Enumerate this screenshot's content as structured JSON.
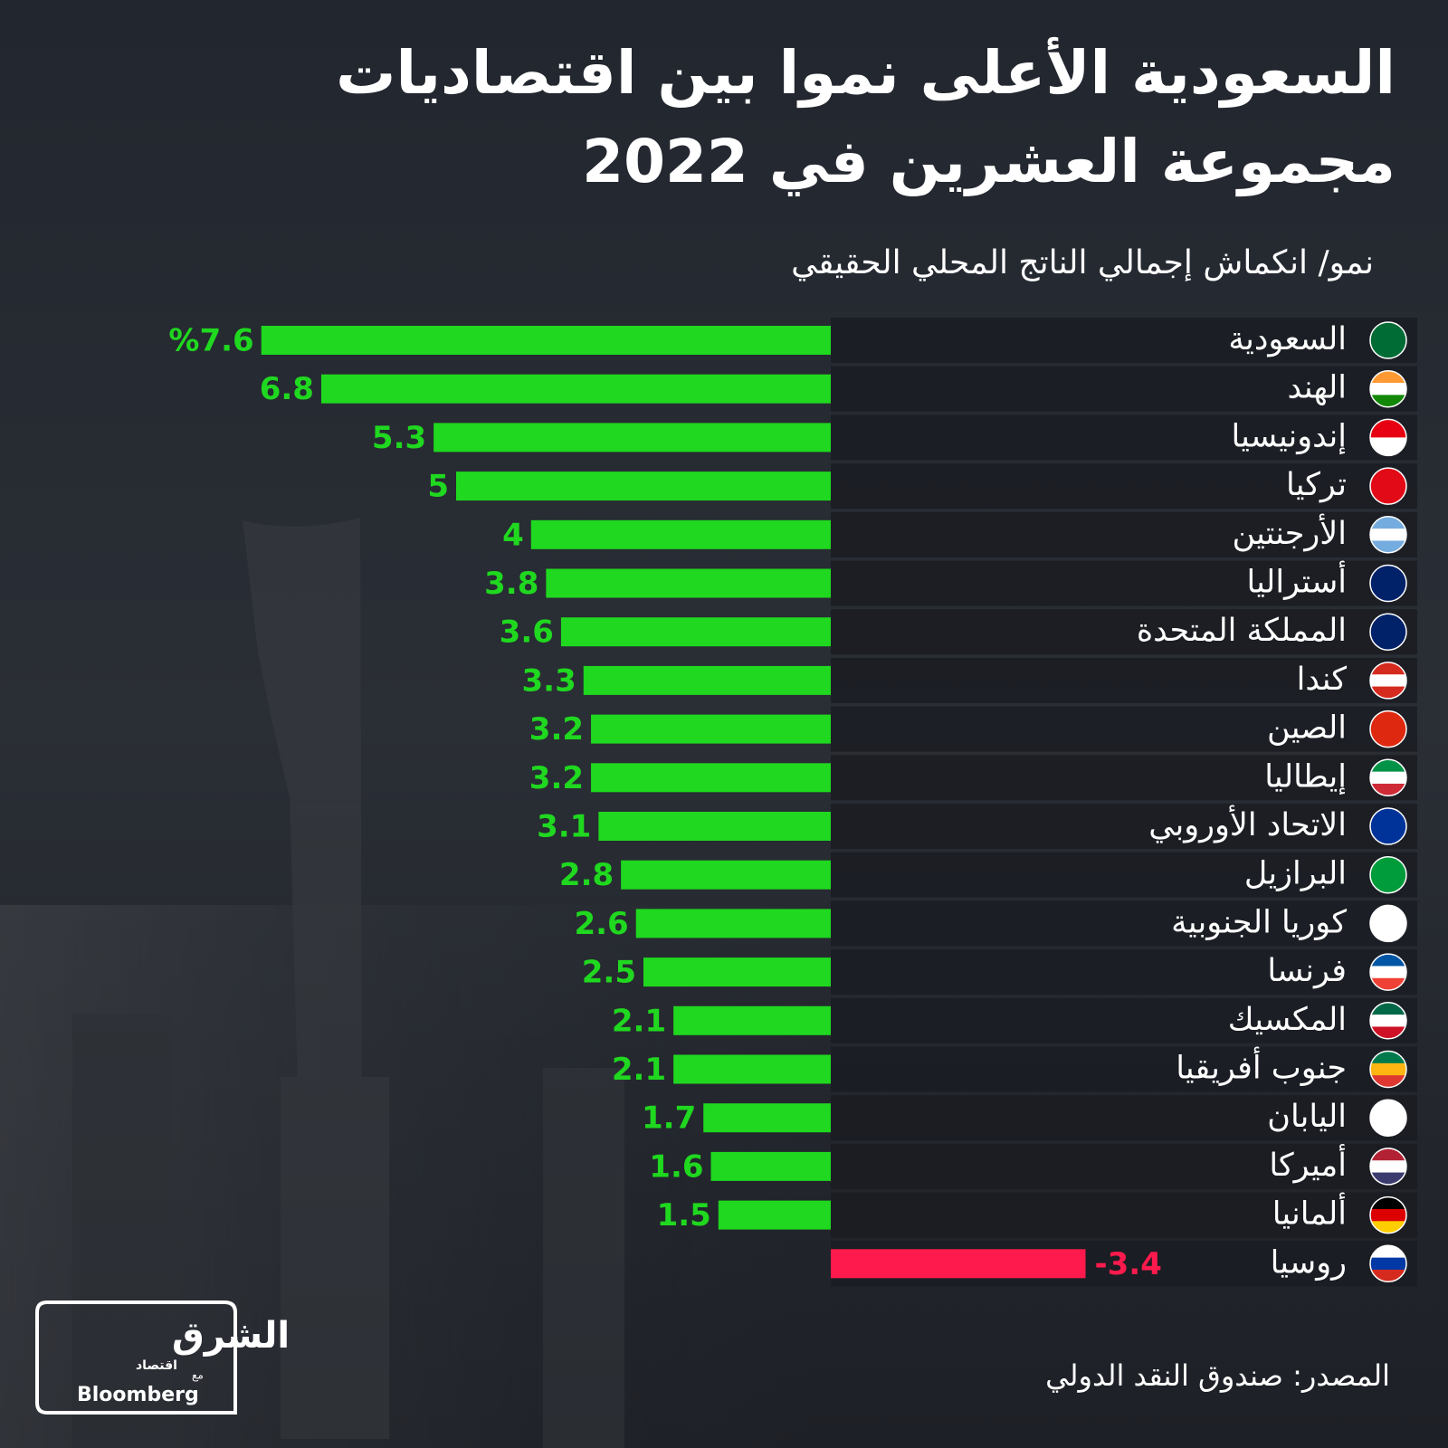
{
  "title": [
    "السعودية الأعلى نموا بين اقتصاديات",
    "مجموعة العشرين في 2022"
  ],
  "chart_data": {
    "type": "bar",
    "subtitle": "نمو/ انكماش إجمالي الناتج المحلي الحقيقي",
    "categories": [
      "السعودية",
      "الهند",
      "إندونيسيا",
      "تركيا",
      "الأرجنتين",
      "أستراليا",
      "المملكة المتحدة",
      "كندا",
      "الصين",
      "إيطاليا",
      "الاتحاد الأوروبي",
      "البرازيل",
      "كوريا الجنوبية",
      "فرنسا",
      "المكسيك",
      "جنوب أفريقيا",
      "اليابان",
      "أميركا",
      "ألمانيا",
      "روسيا"
    ],
    "values": [
      7.6,
      6.8,
      5.3,
      5,
      4,
      3.8,
      3.6,
      3.3,
      3.2,
      3.2,
      3.1,
      2.8,
      2.6,
      2.5,
      2.1,
      2.1,
      1.7,
      1.6,
      1.5,
      -3.4
    ],
    "value_labels": [
      "%7.6",
      "6.8",
      "5.3",
      "5",
      "4",
      "3.8",
      "3.6",
      "3.3",
      "3.2",
      "3.2",
      "3.1",
      "2.8",
      "2.6",
      "2.5",
      "2.1",
      "2.1",
      "1.7",
      "1.6",
      "1.5",
      "-3.4"
    ],
    "color": "#1fd81f",
    "negative_color": "#ff1a4d"
  },
  "source": "المصدر: صندوق النقد الدولي",
  "logo": {
    "brand": "الشرق",
    "sub": "اقتصاد",
    "with": "مع",
    "partner": "Bloomberg"
  }
}
